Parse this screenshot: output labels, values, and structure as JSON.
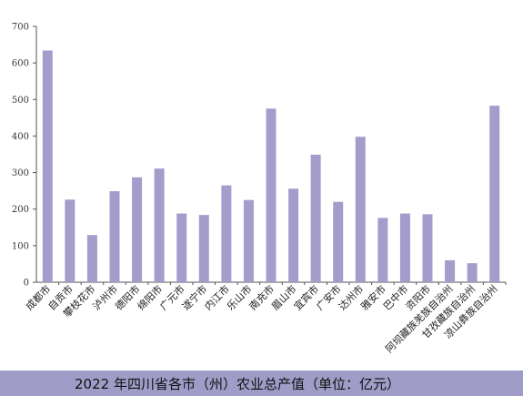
{
  "chart_data": {
    "type": "bar",
    "title": "2022年四川省各市（州）农业总产值（单位：亿元）",
    "categories": [
      "成都市",
      "自贡市",
      "攀枝花市",
      "泸州市",
      "德阳市",
      "绵阳市",
      "广元市",
      "遂宁市",
      "内江市",
      "乐山市",
      "南充市",
      "眉山市",
      "宜宾市",
      "广安市",
      "达州市",
      "雅安市",
      "巴中市",
      "资阳市",
      "阿坝藏族羌族自治州",
      "甘孜藏族自治州",
      "凉山彝族自治州"
    ],
    "values": [
      634,
      226,
      129,
      249,
      287,
      311,
      188,
      184,
      265,
      225,
      475,
      256,
      349,
      220,
      398,
      176,
      188,
      186,
      60,
      52,
      483
    ],
    "ylim": [
      0,
      700
    ],
    "yticks": [
      0,
      100,
      200,
      300,
      400,
      500,
      600,
      700
    ],
    "xlabel": "",
    "ylabel": "",
    "grid": false,
    "bar_color": "#a39dcc"
  },
  "caption": {
    "text": "2022 年四川省各市（州）农业总产值（单位：亿元）",
    "band_color": "#a09cc8"
  }
}
